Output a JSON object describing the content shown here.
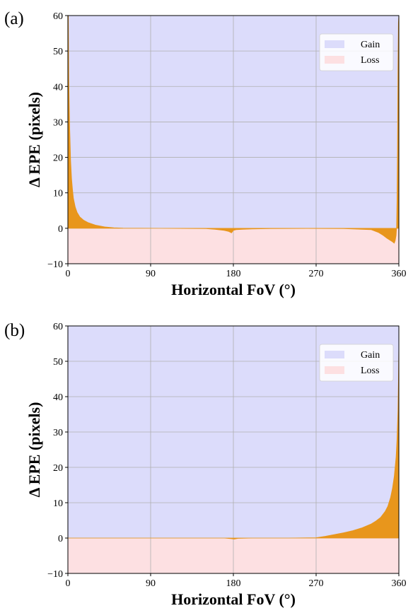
{
  "chart_data": [
    {
      "type": "area",
      "panel_label": "(a)",
      "xlabel": "Horizontal FoV (°)",
      "ylabel": "Δ EPE (pixels)",
      "xlim": [
        0,
        360
      ],
      "ylim": [
        -10,
        60
      ],
      "xticks": [
        0,
        90,
        180,
        270,
        360
      ],
      "xtick_labels": [
        "0",
        "90",
        "180",
        "270",
        "360"
      ],
      "yticks": [
        -10,
        0,
        10,
        20,
        30,
        40,
        50,
        60
      ],
      "ytick_labels": [
        "−10",
        "0",
        "10",
        "20",
        "30",
        "40",
        "50",
        "60"
      ],
      "grid": true,
      "legend": {
        "placement": "top-right",
        "entries": [
          {
            "label": "Gain",
            "color": "#dcdcfb"
          },
          {
            "label": "Loss",
            "color": "#fde0e2"
          }
        ]
      },
      "fill_color": "#e8961c",
      "x": [
        0,
        0.5,
        1,
        2,
        3,
        4,
        5,
        6,
        8,
        10,
        13,
        17,
        22,
        30,
        40,
        50,
        60,
        100,
        150,
        160,
        170,
        175,
        178,
        180,
        183,
        190,
        200,
        220,
        260,
        300,
        330,
        338,
        343,
        347,
        350,
        353,
        355,
        356,
        357,
        357.5,
        358,
        358.5,
        359,
        359.5,
        360
      ],
      "y": [
        60,
        60,
        42,
        28,
        19,
        14,
        11,
        8.5,
        6,
        4.5,
        3.2,
        2.3,
        1.6,
        0.9,
        0.4,
        0.15,
        0.05,
        0,
        -0.1,
        -0.3,
        -0.6,
        -0.9,
        -1.3,
        -0.6,
        -0.4,
        -0.3,
        -0.2,
        -0.1,
        -0.05,
        -0.1,
        -0.4,
        -1.2,
        -2.0,
        -2.8,
        -3.3,
        -3.8,
        -4.2,
        -3.5,
        -2.0,
        0,
        8,
        22,
        45,
        58,
        60
      ]
    },
    {
      "type": "area",
      "panel_label": "(b)",
      "xlabel": "Horizontal FoV (°)",
      "ylabel": "Δ EPE (pixels)",
      "xlim": [
        0,
        360
      ],
      "ylim": [
        -10,
        60
      ],
      "xticks": [
        0,
        90,
        180,
        270,
        360
      ],
      "xtick_labels": [
        "0",
        "90",
        "180",
        "270",
        "360"
      ],
      "yticks": [
        -10,
        0,
        10,
        20,
        30,
        40,
        50,
        60
      ],
      "ytick_labels": [
        "−10",
        "0",
        "10",
        "20",
        "30",
        "40",
        "50",
        "60"
      ],
      "grid": true,
      "legend": {
        "placement": "top-right",
        "entries": [
          {
            "label": "Gain",
            "color": "#dcdcfb"
          },
          {
            "label": "Loss",
            "color": "#fde0e2"
          }
        ]
      },
      "fill_color": "#e8961c",
      "x": [
        0,
        60,
        120,
        170,
        178,
        181,
        185,
        200,
        240,
        270,
        280,
        290,
        300,
        310,
        320,
        330,
        335,
        340,
        345,
        348,
        351,
        353,
        355,
        357,
        358,
        359,
        359.5,
        360
      ],
      "y": [
        0,
        0,
        0,
        0,
        -0.2,
        -0.3,
        -0.1,
        0,
        0,
        0.1,
        0.5,
        1.0,
        1.5,
        2.1,
        2.9,
        4.0,
        4.8,
        5.8,
        7.5,
        9.0,
        11.5,
        14,
        17.5,
        23,
        28,
        36,
        44,
        55
      ]
    }
  ]
}
